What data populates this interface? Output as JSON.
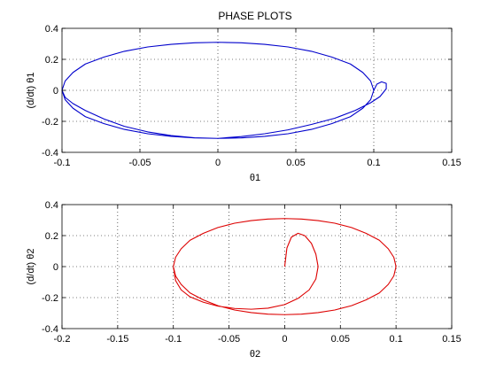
{
  "title": "PHASE PLOTS",
  "chart_data": [
    {
      "type": "line",
      "xlabel": "θ1",
      "ylabel": "(d/dt) θ1",
      "xlim": [
        -0.1,
        0.15
      ],
      "ylim": [
        -0.4,
        0.4
      ],
      "xticks": [
        -0.1,
        -0.05,
        0,
        0.05,
        0.1,
        0.15
      ],
      "yticks": [
        -0.4,
        -0.2,
        0,
        0.2,
        0.4
      ],
      "xtick_labels": [
        "-0.1",
        "-0.05",
        "0",
        "0.05",
        "0.1",
        "0.15"
      ],
      "ytick_labels": [
        "-0.4",
        "-0.2",
        "0",
        "0.2",
        "0.4"
      ],
      "grid": true,
      "series": [
        {
          "color": "#0000cc",
          "x": [
            0.1,
            0.102,
            0.105,
            0.108,
            0.108,
            0.104,
            0.098,
            0.088,
            0.075,
            0.06,
            0.045,
            0.03,
            0.015,
            0.0,
            -0.015,
            -0.03,
            -0.045,
            -0.06,
            -0.073,
            -0.085,
            -0.093,
            -0.098,
            -0.1,
            -0.098,
            -0.093,
            -0.085,
            -0.073,
            -0.06,
            -0.045,
            -0.03,
            -0.015,
            0.0,
            0.015,
            0.03,
            0.045,
            0.06,
            0.073,
            0.085,
            0.093,
            0.098,
            0.1,
            0.098,
            0.093,
            0.085,
            0.073,
            0.06,
            0.045,
            0.03,
            0.015,
            0.0,
            -0.015,
            -0.03,
            -0.045,
            -0.06,
            -0.073,
            -0.085,
            -0.093,
            -0.098,
            -0.1,
            -0.098,
            -0.093,
            -0.085,
            -0.073,
            -0.06,
            -0.045,
            -0.03,
            -0.015,
            0.0,
            0.015,
            0.03,
            0.045,
            0.06,
            0.073,
            0.085,
            0.093,
            0.098
          ],
          "y": [
            0.0,
            0.04,
            0.055,
            0.045,
            0.01,
            -0.04,
            -0.08,
            -0.13,
            -0.18,
            -0.22,
            -0.255,
            -0.28,
            -0.298,
            -0.31,
            -0.306,
            -0.292,
            -0.268,
            -0.232,
            -0.185,
            -0.13,
            -0.085,
            -0.045,
            0.0,
            0.06,
            0.115,
            0.17,
            0.215,
            0.252,
            0.28,
            0.297,
            0.307,
            0.31,
            0.307,
            0.297,
            0.28,
            0.252,
            0.215,
            0.17,
            0.115,
            0.06,
            0.0,
            -0.06,
            -0.115,
            -0.17,
            -0.215,
            -0.252,
            -0.28,
            -0.297,
            -0.307,
            -0.31,
            -0.307,
            -0.297,
            -0.28,
            -0.252,
            -0.215,
            -0.17,
            -0.115,
            -0.06,
            0.0,
            0.06,
            0.115,
            0.17,
            0.215,
            0.252,
            0.28,
            0.297,
            0.307,
            0.31,
            0.307,
            0.297,
            0.28,
            0.252,
            0.215,
            0.17,
            0.115,
            0.06
          ]
        }
      ]
    },
    {
      "type": "line",
      "xlabel": "θ2",
      "ylabel": "(d/dt) θ2",
      "xlim": [
        -0.2,
        0.15
      ],
      "ylim": [
        -0.4,
        0.4
      ],
      "xticks": [
        -0.2,
        -0.15,
        -0.1,
        -0.05,
        0,
        0.05,
        0.1,
        0.15
      ],
      "yticks": [
        -0.4,
        -0.2,
        0,
        0.2,
        0.4
      ],
      "xtick_labels": [
        "-0.2",
        "-0.15",
        "-0.1",
        "-0.05",
        "0",
        "0.05",
        "0.1",
        "0.15"
      ],
      "ytick_labels": [
        "-0.4",
        "-0.2",
        "0",
        "0.2",
        "0.4"
      ],
      "grid": true,
      "series": [
        {
          "color": "#dd0000",
          "x": [
            0.0,
            0.002,
            0.006,
            0.012,
            0.018,
            0.024,
            0.028,
            0.03,
            0.028,
            0.022,
            0.012,
            0.0,
            -0.015,
            -0.03,
            -0.045,
            -0.06,
            -0.073,
            -0.085,
            -0.093,
            -0.098,
            -0.1,
            -0.098,
            -0.093,
            -0.085,
            -0.073,
            -0.06,
            -0.045,
            -0.03,
            -0.015,
            0.0,
            0.015,
            0.03,
            0.045,
            0.06,
            0.073,
            0.085,
            0.093,
            0.098,
            0.1,
            0.098,
            0.093,
            0.085,
            0.073,
            0.06,
            0.045,
            0.03,
            0.015,
            0.0,
            -0.015,
            -0.03,
            -0.045,
            -0.06,
            -0.073,
            -0.085,
            -0.093,
            -0.098,
            -0.1
          ],
          "y": [
            0.0,
            0.12,
            0.19,
            0.215,
            0.2,
            0.15,
            0.08,
            0.0,
            -0.08,
            -0.15,
            -0.205,
            -0.245,
            -0.268,
            -0.275,
            -0.27,
            -0.255,
            -0.23,
            -0.195,
            -0.15,
            -0.09,
            0.0,
            0.06,
            0.115,
            0.17,
            0.215,
            0.252,
            0.28,
            0.297,
            0.307,
            0.31,
            0.307,
            0.297,
            0.28,
            0.252,
            0.215,
            0.17,
            0.115,
            0.06,
            0.0,
            -0.06,
            -0.115,
            -0.17,
            -0.215,
            -0.252,
            -0.28,
            -0.297,
            -0.307,
            -0.31,
            -0.307,
            -0.297,
            -0.28,
            -0.252,
            -0.215,
            -0.17,
            -0.115,
            -0.06,
            0.0
          ]
        }
      ]
    }
  ]
}
